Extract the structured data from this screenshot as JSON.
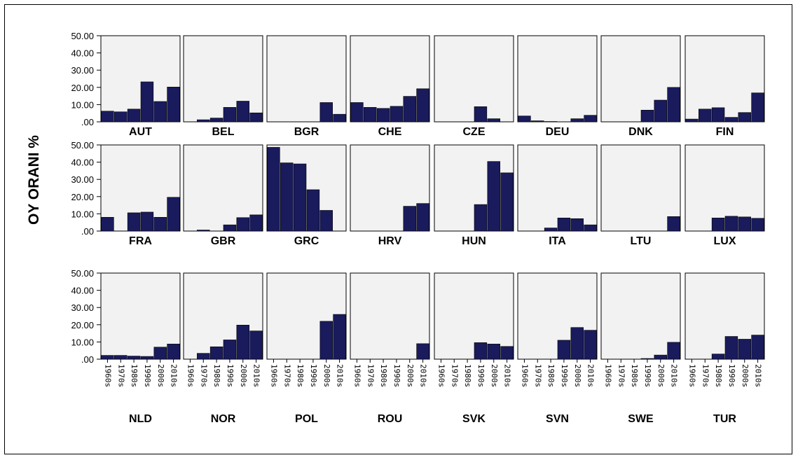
{
  "chart_data": {
    "type": "bar",
    "ylabel": "OY ORANI %",
    "categories": [
      "1960s",
      "1970s",
      "1980s",
      "1990s",
      "2000s",
      "2010s"
    ],
    "y_ticks": [
      "50.00",
      "40.00",
      "30.00",
      "20.00",
      "10.00",
      ".00"
    ],
    "ylim": [
      0,
      50
    ],
    "bar_color": "#191b5c",
    "panel_color": "#f2f2f2",
    "panels": [
      {
        "name": "AUT",
        "values": [
          6.2,
          5.8,
          7.4,
          23.2,
          11.8,
          20.2
        ]
      },
      {
        "name": "BEL",
        "values": [
          0,
          1.2,
          2.2,
          8.4,
          12.0,
          5.2
        ]
      },
      {
        "name": "BGR",
        "values": [
          0,
          0,
          0,
          0,
          11.2,
          4.4
        ]
      },
      {
        "name": "CHE",
        "values": [
          11.2,
          8.4,
          7.8,
          9.0,
          14.8,
          19.2
        ]
      },
      {
        "name": "CZE",
        "values": [
          0,
          0,
          0,
          8.8,
          1.8,
          0
        ]
      },
      {
        "name": "DEU",
        "values": [
          3.4,
          0.6,
          0.2,
          0,
          1.8,
          3.8
        ]
      },
      {
        "name": "DNK",
        "values": [
          0,
          0,
          0,
          6.8,
          12.6,
          20.0
        ]
      },
      {
        "name": "FIN",
        "values": [
          1.6,
          7.4,
          8.2,
          2.6,
          5.4,
          16.8
        ]
      },
      {
        "name": "FRA",
        "values": [
          8.0,
          0,
          10.6,
          11.0,
          8.0,
          19.6
        ]
      },
      {
        "name": "GBR",
        "values": [
          0,
          0.6,
          0,
          3.6,
          7.8,
          9.4
        ]
      },
      {
        "name": "GRC",
        "values": [
          48.6,
          39.6,
          39.0,
          24.0,
          12.0,
          0
        ]
      },
      {
        "name": "HRV",
        "values": [
          0,
          0,
          0,
          0,
          14.4,
          16.0
        ]
      },
      {
        "name": "HUN",
        "values": [
          0,
          0,
          0,
          15.4,
          40.4,
          33.8
        ]
      },
      {
        "name": "ITA",
        "values": [
          0,
          0,
          1.8,
          7.6,
          7.2,
          3.6
        ]
      },
      {
        "name": "LTU",
        "values": [
          0,
          0,
          0,
          0,
          0,
          8.4
        ]
      },
      {
        "name": "LUX",
        "values": [
          0,
          0,
          7.6,
          8.6,
          8.2,
          7.4
        ]
      },
      {
        "name": "NLD",
        "values": [
          2.2,
          2.2,
          1.8,
          1.6,
          7.0,
          8.8
        ]
      },
      {
        "name": "NOR",
        "values": [
          0,
          3.4,
          7.2,
          11.2,
          19.8,
          16.4
        ]
      },
      {
        "name": "POL",
        "values": [
          0,
          0,
          0,
          0,
          22.0,
          26.0
        ]
      },
      {
        "name": "ROU",
        "values": [
          0,
          0,
          0,
          0,
          0,
          9.0
        ]
      },
      {
        "name": "SVK",
        "values": [
          0,
          0,
          0,
          9.6,
          8.8,
          7.4
        ]
      },
      {
        "name": "SVN",
        "values": [
          0,
          0,
          0,
          11.0,
          18.4,
          16.8
        ]
      },
      {
        "name": "SWE",
        "values": [
          0,
          0,
          0,
          0.4,
          2.4,
          9.8
        ]
      },
      {
        "name": "TUR",
        "values": [
          0,
          0,
          3.0,
          13.2,
          11.6,
          14.0
        ]
      }
    ]
  }
}
